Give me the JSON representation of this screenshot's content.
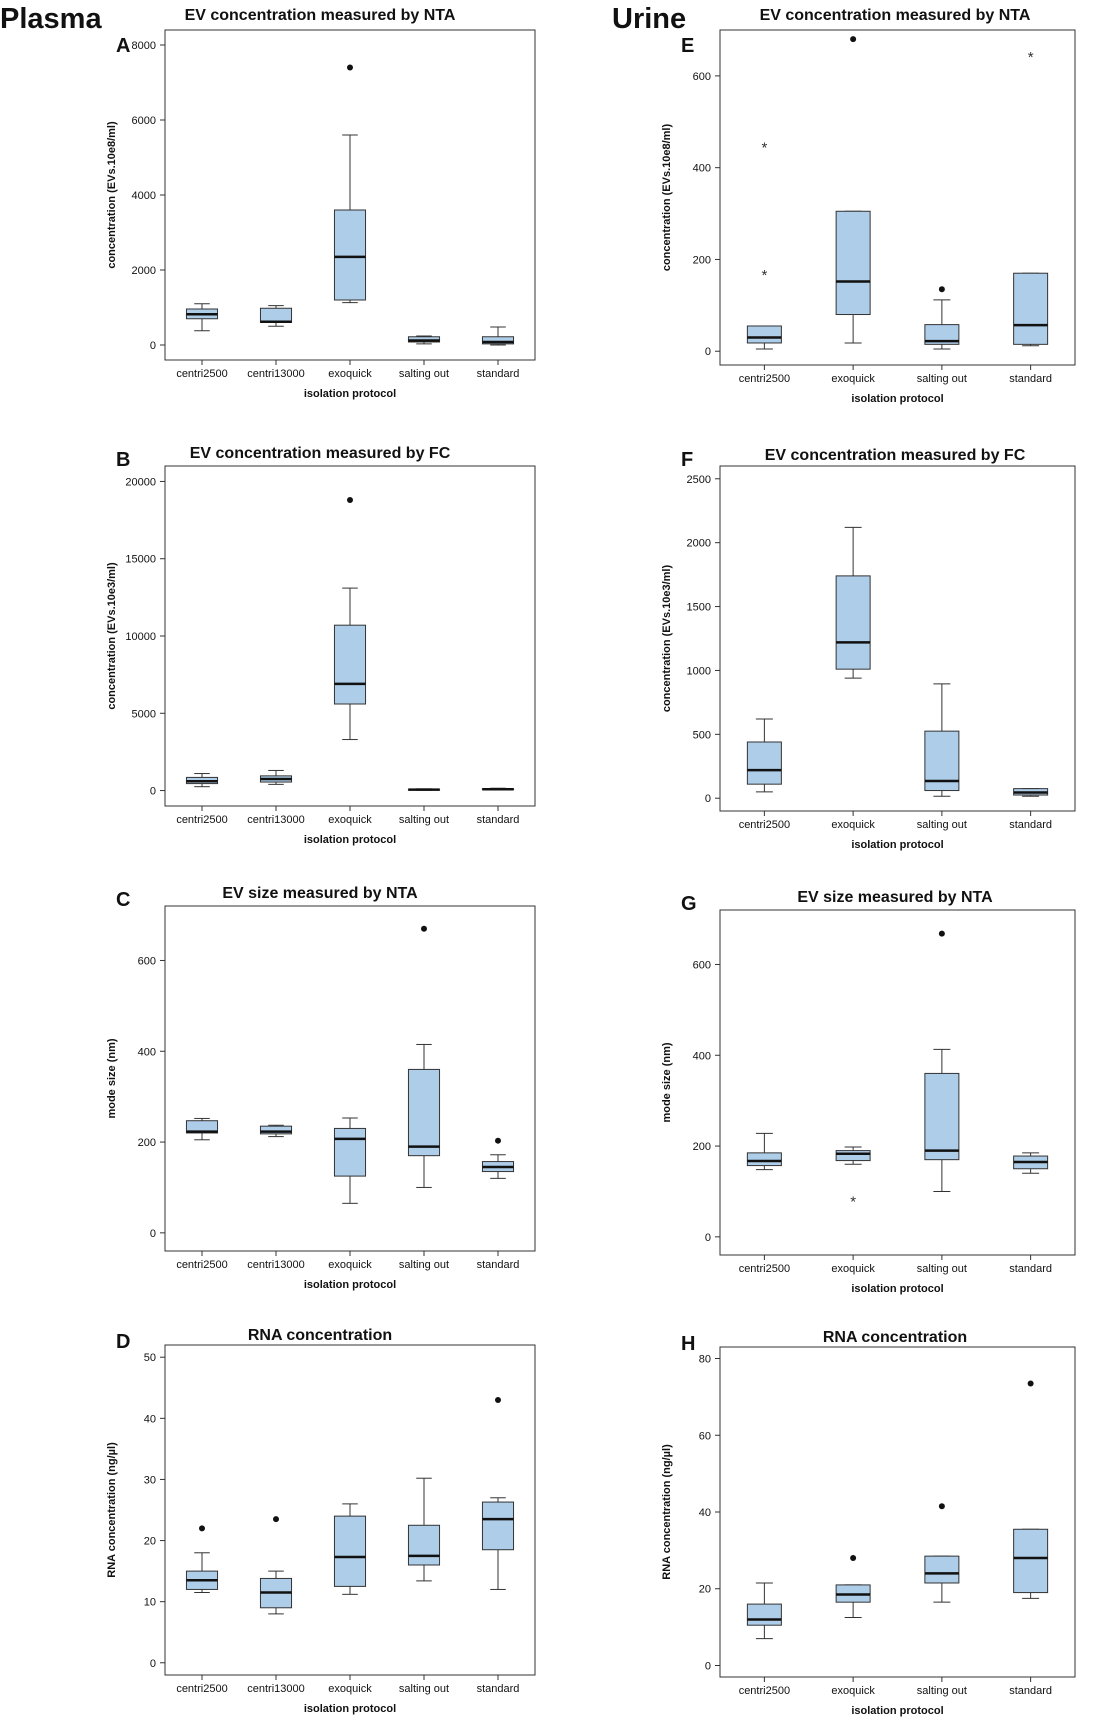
{
  "group_labels": [
    "Plasma",
    "Urine"
  ],
  "colors": {
    "box_fill": "#aecde9",
    "line": "#333333",
    "median": "#111111"
  },
  "chart_data": [
    {
      "type": "box",
      "panel": "A",
      "group": "Plasma",
      "title": "EV concentration measured by NTA",
      "xlabel": "isolation protocol",
      "ylabel": "concentration (EVs.10e8/ml)",
      "ylim": [
        -400,
        8400
      ],
      "yticks": [
        0,
        2000,
        4000,
        6000,
        8000
      ],
      "categories": [
        "centri2500",
        "centri13000",
        "exoquick",
        "salting out",
        "standard"
      ],
      "boxes": [
        {
          "min": 380,
          "q1": 700,
          "median": 820,
          "q3": 960,
          "max": 1100,
          "outliers": [],
          "extremes": []
        },
        {
          "min": 500,
          "q1": 600,
          "median": 620,
          "q3": 980,
          "max": 1050,
          "outliers": [],
          "extremes": []
        },
        {
          "min": 1130,
          "q1": 1200,
          "median": 2350,
          "q3": 3600,
          "max": 5600,
          "outliers": [
            7400
          ],
          "extremes": []
        },
        {
          "min": 30,
          "q1": 80,
          "median": 120,
          "q3": 220,
          "max": 240,
          "outliers": [],
          "extremes": []
        },
        {
          "min": 0,
          "q1": 30,
          "median": 80,
          "q3": 220,
          "max": 480,
          "outliers": [],
          "extremes": []
        }
      ]
    },
    {
      "type": "box",
      "panel": "B",
      "group": "Plasma",
      "title": "EV concentration measured by FC",
      "xlabel": "isolation protocol",
      "ylabel": "concentration (EVs.10e3/ml)",
      "ylim": [
        -1000,
        21000
      ],
      "yticks": [
        0,
        5000,
        10000,
        15000,
        20000
      ],
      "categories": [
        "centri2500",
        "centri13000",
        "exoquick",
        "salting out",
        "standard"
      ],
      "boxes": [
        {
          "min": 250,
          "q1": 450,
          "median": 600,
          "q3": 850,
          "max": 1100,
          "outliers": [],
          "extremes": []
        },
        {
          "min": 400,
          "q1": 550,
          "median": 750,
          "q3": 950,
          "max": 1300,
          "outliers": [],
          "extremes": []
        },
        {
          "min": 3300,
          "q1": 5600,
          "median": 6900,
          "q3": 10700,
          "max": 13100,
          "outliers": [
            18800
          ],
          "extremes": []
        },
        {
          "min": 20,
          "q1": 40,
          "median": 60,
          "q3": 90,
          "max": 110,
          "outliers": [],
          "extremes": []
        },
        {
          "min": 40,
          "q1": 60,
          "median": 80,
          "q3": 120,
          "max": 150,
          "outliers": [],
          "extremes": []
        }
      ]
    },
    {
      "type": "box",
      "panel": "C",
      "group": "Plasma",
      "title": "EV size measured by NTA",
      "xlabel": "isolation protocol",
      "ylabel": "mode size (nm)",
      "ylim": [
        -40,
        720
      ],
      "yticks": [
        0,
        200,
        400,
        600
      ],
      "categories": [
        "centri2500",
        "centri13000",
        "exoquick",
        "salting out",
        "standard"
      ],
      "boxes": [
        {
          "min": 205,
          "q1": 220,
          "median": 223,
          "q3": 247,
          "max": 252,
          "outliers": [],
          "extremes": []
        },
        {
          "min": 212,
          "q1": 218,
          "median": 223,
          "q3": 235,
          "max": 237,
          "outliers": [],
          "extremes": []
        },
        {
          "min": 65,
          "q1": 125,
          "median": 207,
          "q3": 230,
          "max": 253,
          "outliers": [],
          "extremes": []
        },
        {
          "min": 100,
          "q1": 170,
          "median": 190,
          "q3": 360,
          "max": 415,
          "outliers": [
            670
          ],
          "extremes": []
        },
        {
          "min": 120,
          "q1": 135,
          "median": 145,
          "q3": 157,
          "max": 172,
          "outliers": [
            203
          ],
          "extremes": []
        }
      ]
    },
    {
      "type": "box",
      "panel": "D",
      "group": "Plasma",
      "title": "RNA concentration",
      "xlabel": "isolation protocol",
      "ylabel": "RNA concentration (ng/µl)",
      "ylim": [
        -2,
        52
      ],
      "yticks": [
        0,
        10,
        20,
        30,
        40,
        50
      ],
      "categories": [
        "centri2500",
        "centri13000",
        "exoquick",
        "salting out",
        "standard"
      ],
      "boxes": [
        {
          "min": 11.5,
          "q1": 12,
          "median": 13.5,
          "q3": 15,
          "max": 18,
          "outliers": [
            22
          ],
          "extremes": []
        },
        {
          "min": 8,
          "q1": 9,
          "median": 11.5,
          "q3": 13.8,
          "max": 15,
          "outliers": [
            23.5
          ],
          "extremes": []
        },
        {
          "min": 11.2,
          "q1": 12.5,
          "median": 17.3,
          "q3": 24,
          "max": 26,
          "outliers": [],
          "extremes": []
        },
        {
          "min": 13.4,
          "q1": 16,
          "median": 17.5,
          "q3": 22.5,
          "max": 30.2,
          "outliers": [],
          "extremes": []
        },
        {
          "min": 12,
          "q1": 18.5,
          "median": 23.5,
          "q3": 26.3,
          "max": 27,
          "outliers": [
            43
          ],
          "extremes": []
        }
      ]
    },
    {
      "type": "box",
      "panel": "E",
      "group": "Urine",
      "title": "EV concentration measured by NTA",
      "xlabel": "isolation protocol",
      "ylabel": "concentration (EVs.10e8/ml)",
      "ylim": [
        -30,
        700
      ],
      "yticks": [
        0,
        200,
        400,
        600
      ],
      "categories": [
        "centri2500",
        "exoquick",
        "salting out",
        "standard"
      ],
      "boxes": [
        {
          "min": 5,
          "q1": 18,
          "median": 30,
          "q3": 55,
          "max": 55,
          "outliers": [],
          "extremes": [
            170,
            448
          ]
        },
        {
          "min": 18,
          "q1": 80,
          "median": 152,
          "q3": 305,
          "max": 305,
          "outliers": [
            680
          ],
          "extremes": []
        },
        {
          "min": 5,
          "q1": 15,
          "median": 22,
          "q3": 58,
          "max": 112,
          "outliers": [
            135
          ],
          "extremes": []
        },
        {
          "min": 12,
          "q1": 15,
          "median": 57,
          "q3": 170,
          "max": 170,
          "outliers": [],
          "extremes": [
            645
          ]
        }
      ]
    },
    {
      "type": "box",
      "panel": "F",
      "group": "Urine",
      "title": "EV concentration measured by FC",
      "xlabel": "isolation protocol",
      "ylabel": "concentration (EVs.10e3/ml)",
      "ylim": [
        -100,
        2600
      ],
      "yticks": [
        0,
        500,
        1000,
        1500,
        2000,
        2500
      ],
      "categories": [
        "centri2500",
        "exoquick",
        "salting out",
        "standard"
      ],
      "boxes": [
        {
          "min": 50,
          "q1": 110,
          "median": 220,
          "q3": 440,
          "max": 620,
          "outliers": [],
          "extremes": []
        },
        {
          "min": 940,
          "q1": 1010,
          "median": 1220,
          "q3": 1740,
          "max": 2120,
          "outliers": [],
          "extremes": []
        },
        {
          "min": 15,
          "q1": 60,
          "median": 135,
          "q3": 525,
          "max": 895,
          "outliers": [],
          "extremes": []
        },
        {
          "min": 15,
          "q1": 25,
          "median": 45,
          "q3": 75,
          "max": 75,
          "outliers": [],
          "extremes": []
        }
      ]
    },
    {
      "type": "box",
      "panel": "G",
      "group": "Urine",
      "title": "EV size measured by NTA",
      "xlabel": "isolation protocol",
      "ylabel": "mode size (nm)",
      "ylim": [
        -40,
        720
      ],
      "yticks": [
        0,
        200,
        400,
        600
      ],
      "categories": [
        "centri2500",
        "exoquick",
        "salting out",
        "standard"
      ],
      "boxes": [
        {
          "min": 148,
          "q1": 157,
          "median": 167,
          "q3": 185,
          "max": 228,
          "outliers": [],
          "extremes": []
        },
        {
          "min": 160,
          "q1": 168,
          "median": 183,
          "q3": 190,
          "max": 198,
          "outliers": [],
          "extremes": [
            82
          ]
        },
        {
          "min": 100,
          "q1": 170,
          "median": 190,
          "q3": 360,
          "max": 413,
          "outliers": [
            668
          ],
          "extremes": []
        },
        {
          "min": 140,
          "q1": 150,
          "median": 165,
          "q3": 178,
          "max": 185,
          "outliers": [],
          "extremes": []
        }
      ]
    },
    {
      "type": "box",
      "panel": "H",
      "group": "Urine",
      "title": "RNA concentration",
      "xlabel": "isolation protocol",
      "ylabel": "RNA concentration (ng/µl)",
      "ylim": [
        -3,
        83
      ],
      "yticks": [
        0,
        20,
        40,
        60,
        80
      ],
      "categories": [
        "centri2500",
        "exoquick",
        "salting out",
        "standard"
      ],
      "boxes": [
        {
          "min": 7,
          "q1": 10.5,
          "median": 12,
          "q3": 16,
          "max": 21.5,
          "outliers": [],
          "extremes": []
        },
        {
          "min": 12.5,
          "q1": 16.5,
          "median": 18.5,
          "q3": 21,
          "max": 21,
          "outliers": [
            28
          ],
          "extremes": []
        },
        {
          "min": 16.5,
          "q1": 21.5,
          "median": 24,
          "q3": 28.5,
          "max": 28.5,
          "outliers": [
            41.5
          ],
          "extremes": []
        },
        {
          "min": 17.5,
          "q1": 19,
          "median": 28,
          "q3": 35.5,
          "max": 35.5,
          "outliers": [
            73.5
          ],
          "extremes": []
        }
      ]
    }
  ]
}
